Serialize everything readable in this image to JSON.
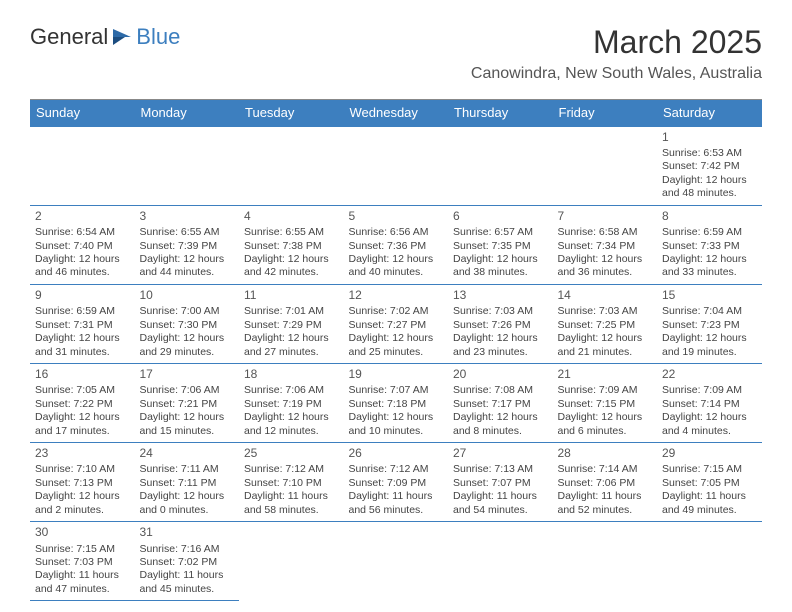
{
  "logo": {
    "part1": "General",
    "part2": "Blue"
  },
  "title": "March 2025",
  "location": "Canowindra, New South Wales, Australia",
  "colors": {
    "header_bg": "#3d7fbf",
    "header_text": "#ffffff",
    "border": "#3d7fbf",
    "text": "#444444"
  },
  "weekdays": [
    "Sunday",
    "Monday",
    "Tuesday",
    "Wednesday",
    "Thursday",
    "Friday",
    "Saturday"
  ],
  "weeks": [
    [
      null,
      null,
      null,
      null,
      null,
      null,
      {
        "n": "1",
        "sr": "Sunrise: 6:53 AM",
        "ss": "Sunset: 7:42 PM",
        "dl1": "Daylight: 12 hours",
        "dl2": "and 48 minutes."
      }
    ],
    [
      {
        "n": "2",
        "sr": "Sunrise: 6:54 AM",
        "ss": "Sunset: 7:40 PM",
        "dl1": "Daylight: 12 hours",
        "dl2": "and 46 minutes."
      },
      {
        "n": "3",
        "sr": "Sunrise: 6:55 AM",
        "ss": "Sunset: 7:39 PM",
        "dl1": "Daylight: 12 hours",
        "dl2": "and 44 minutes."
      },
      {
        "n": "4",
        "sr": "Sunrise: 6:55 AM",
        "ss": "Sunset: 7:38 PM",
        "dl1": "Daylight: 12 hours",
        "dl2": "and 42 minutes."
      },
      {
        "n": "5",
        "sr": "Sunrise: 6:56 AM",
        "ss": "Sunset: 7:36 PM",
        "dl1": "Daylight: 12 hours",
        "dl2": "and 40 minutes."
      },
      {
        "n": "6",
        "sr": "Sunrise: 6:57 AM",
        "ss": "Sunset: 7:35 PM",
        "dl1": "Daylight: 12 hours",
        "dl2": "and 38 minutes."
      },
      {
        "n": "7",
        "sr": "Sunrise: 6:58 AM",
        "ss": "Sunset: 7:34 PM",
        "dl1": "Daylight: 12 hours",
        "dl2": "and 36 minutes."
      },
      {
        "n": "8",
        "sr": "Sunrise: 6:59 AM",
        "ss": "Sunset: 7:33 PM",
        "dl1": "Daylight: 12 hours",
        "dl2": "and 33 minutes."
      }
    ],
    [
      {
        "n": "9",
        "sr": "Sunrise: 6:59 AM",
        "ss": "Sunset: 7:31 PM",
        "dl1": "Daylight: 12 hours",
        "dl2": "and 31 minutes."
      },
      {
        "n": "10",
        "sr": "Sunrise: 7:00 AM",
        "ss": "Sunset: 7:30 PM",
        "dl1": "Daylight: 12 hours",
        "dl2": "and 29 minutes."
      },
      {
        "n": "11",
        "sr": "Sunrise: 7:01 AM",
        "ss": "Sunset: 7:29 PM",
        "dl1": "Daylight: 12 hours",
        "dl2": "and 27 minutes."
      },
      {
        "n": "12",
        "sr": "Sunrise: 7:02 AM",
        "ss": "Sunset: 7:27 PM",
        "dl1": "Daylight: 12 hours",
        "dl2": "and 25 minutes."
      },
      {
        "n": "13",
        "sr": "Sunrise: 7:03 AM",
        "ss": "Sunset: 7:26 PM",
        "dl1": "Daylight: 12 hours",
        "dl2": "and 23 minutes."
      },
      {
        "n": "14",
        "sr": "Sunrise: 7:03 AM",
        "ss": "Sunset: 7:25 PM",
        "dl1": "Daylight: 12 hours",
        "dl2": "and 21 minutes."
      },
      {
        "n": "15",
        "sr": "Sunrise: 7:04 AM",
        "ss": "Sunset: 7:23 PM",
        "dl1": "Daylight: 12 hours",
        "dl2": "and 19 minutes."
      }
    ],
    [
      {
        "n": "16",
        "sr": "Sunrise: 7:05 AM",
        "ss": "Sunset: 7:22 PM",
        "dl1": "Daylight: 12 hours",
        "dl2": "and 17 minutes."
      },
      {
        "n": "17",
        "sr": "Sunrise: 7:06 AM",
        "ss": "Sunset: 7:21 PM",
        "dl1": "Daylight: 12 hours",
        "dl2": "and 15 minutes."
      },
      {
        "n": "18",
        "sr": "Sunrise: 7:06 AM",
        "ss": "Sunset: 7:19 PM",
        "dl1": "Daylight: 12 hours",
        "dl2": "and 12 minutes."
      },
      {
        "n": "19",
        "sr": "Sunrise: 7:07 AM",
        "ss": "Sunset: 7:18 PM",
        "dl1": "Daylight: 12 hours",
        "dl2": "and 10 minutes."
      },
      {
        "n": "20",
        "sr": "Sunrise: 7:08 AM",
        "ss": "Sunset: 7:17 PM",
        "dl1": "Daylight: 12 hours",
        "dl2": "and 8 minutes."
      },
      {
        "n": "21",
        "sr": "Sunrise: 7:09 AM",
        "ss": "Sunset: 7:15 PM",
        "dl1": "Daylight: 12 hours",
        "dl2": "and 6 minutes."
      },
      {
        "n": "22",
        "sr": "Sunrise: 7:09 AM",
        "ss": "Sunset: 7:14 PM",
        "dl1": "Daylight: 12 hours",
        "dl2": "and 4 minutes."
      }
    ],
    [
      {
        "n": "23",
        "sr": "Sunrise: 7:10 AM",
        "ss": "Sunset: 7:13 PM",
        "dl1": "Daylight: 12 hours",
        "dl2": "and 2 minutes."
      },
      {
        "n": "24",
        "sr": "Sunrise: 7:11 AM",
        "ss": "Sunset: 7:11 PM",
        "dl1": "Daylight: 12 hours",
        "dl2": "and 0 minutes."
      },
      {
        "n": "25",
        "sr": "Sunrise: 7:12 AM",
        "ss": "Sunset: 7:10 PM",
        "dl1": "Daylight: 11 hours",
        "dl2": "and 58 minutes."
      },
      {
        "n": "26",
        "sr": "Sunrise: 7:12 AM",
        "ss": "Sunset: 7:09 PM",
        "dl1": "Daylight: 11 hours",
        "dl2": "and 56 minutes."
      },
      {
        "n": "27",
        "sr": "Sunrise: 7:13 AM",
        "ss": "Sunset: 7:07 PM",
        "dl1": "Daylight: 11 hours",
        "dl2": "and 54 minutes."
      },
      {
        "n": "28",
        "sr": "Sunrise: 7:14 AM",
        "ss": "Sunset: 7:06 PM",
        "dl1": "Daylight: 11 hours",
        "dl2": "and 52 minutes."
      },
      {
        "n": "29",
        "sr": "Sunrise: 7:15 AM",
        "ss": "Sunset: 7:05 PM",
        "dl1": "Daylight: 11 hours",
        "dl2": "and 49 minutes."
      }
    ],
    [
      {
        "n": "30",
        "sr": "Sunrise: 7:15 AM",
        "ss": "Sunset: 7:03 PM",
        "dl1": "Daylight: 11 hours",
        "dl2": "and 47 minutes."
      },
      {
        "n": "31",
        "sr": "Sunrise: 7:16 AM",
        "ss": "Sunset: 7:02 PM",
        "dl1": "Daylight: 11 hours",
        "dl2": "and 45 minutes."
      },
      null,
      null,
      null,
      null,
      null
    ]
  ]
}
